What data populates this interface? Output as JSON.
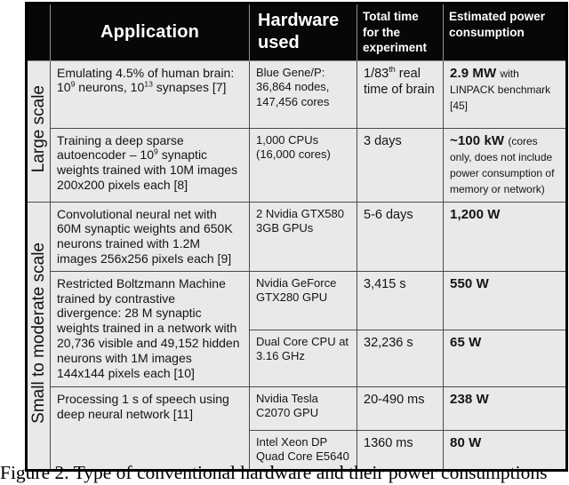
{
  "colors": {
    "header-bg": "#070707",
    "header-text": "#ffffff",
    "cell-bg": "#e9e9e9",
    "grid-border": "#4a4a4a",
    "outer-border": "#000000",
    "text": "#141414"
  },
  "header": {
    "application": "Application",
    "hardware": "Hardware used",
    "time": "Total time for the experiment",
    "power": "Estimated power consumption"
  },
  "groups": [
    {
      "label": "Large scale",
      "rows": [
        {
          "application": "Emulating 4.5% of human brain: 10^{9} neurons, 10^{13} synapses [7]",
          "hardware": "Blue Gene/P: 36,864 nodes, 147,456 cores",
          "time": "1/83^{th} real time of brain",
          "power_value": "2.9 MW",
          "power_note": "with LINPACK benchmark [45]"
        },
        {
          "application": "Training a deep sparse autoencoder – 10^{9} synaptic weights trained with 10M images 200x200 pixels each [8]",
          "hardware": "1,000 CPUs (16,000 cores)",
          "time": "3 days",
          "power_value": "~100 kW",
          "power_note": "(cores only, does not include power consumption of memory or network)"
        }
      ]
    },
    {
      "label": "Small to moderate scale",
      "rows": [
        {
          "application": "Convolutional neural net with 60M synaptic weights and 650K neurons trained with 1.2M images 256x256 pixels each [9]",
          "hardware": "2 Nvidia GTX580 3GB GPUs",
          "time": "5-6 days",
          "power_value": "1,200 W",
          "power_note": ""
        },
        {
          "application": "Restricted Boltzmann Machine trained by contrastive divergence: 28 M synaptic weights trained in a network with 20,736 visible and 49,152 hidden neurons with 1M images 144x144 pixels each [10]",
          "variants": [
            {
              "hardware": "Nvidia GeForce GTX280 GPU",
              "time": "3,415 s",
              "power_value": "550 W"
            },
            {
              "hardware": "Dual Core CPU at 3.16 GHz",
              "time": "32,236 s",
              "power_value": "65 W"
            }
          ]
        },
        {
          "application": "Processing 1 s of speech using deep neural network [11]",
          "variants": [
            {
              "hardware": "Nvidia Tesla C2070 GPU",
              "time": "20-490 ms",
              "power_value": "238 W"
            },
            {
              "hardware": "Intel Xeon DP Quad Core E5640",
              "time": "1360 ms",
              "power_value": "80 W"
            }
          ]
        }
      ]
    }
  ],
  "caption": "Figure 2. Type of conventional hardware and their power consumptions"
}
